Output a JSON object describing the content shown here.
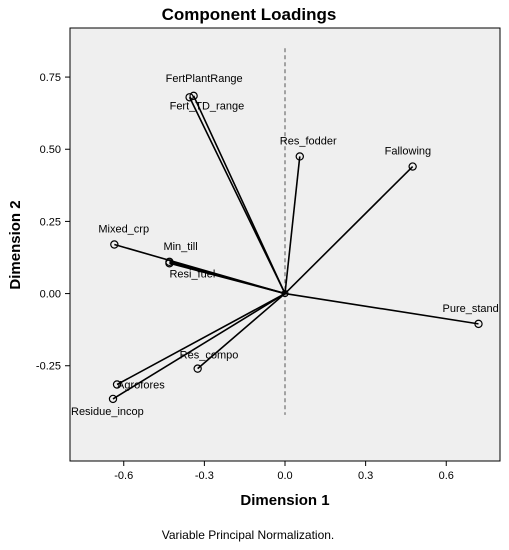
{
  "chart_data": {
    "type": "scatter",
    "title": "Component Loadings",
    "xlabel": "Dimension 1",
    "ylabel": "Dimension 2",
    "footnote": "Variable Principal Normalization.",
    "xlim": [
      -0.8,
      0.8
    ],
    "ylim": [
      -0.58,
      0.92
    ],
    "xticks": [
      "-0.6",
      "-0.3",
      "0.0",
      "0.3",
      "0.6"
    ],
    "xtick_values": [
      -0.6,
      -0.3,
      0.0,
      0.3,
      0.6
    ],
    "yticks": [
      "0.75",
      "0.50",
      "0.25",
      "0.00",
      "-0.25"
    ],
    "ytick_values": [
      0.75,
      0.5,
      0.25,
      0.0,
      -0.25
    ],
    "grid": false,
    "reference_line": {
      "x": 0.0,
      "style": "dashed"
    },
    "vectors_from_origin": true,
    "points": [
      {
        "label": "FertPlantRange",
        "x": -0.34,
        "y": 0.685
      },
      {
        "label": "Fert_TD_range",
        "x": -0.355,
        "y": 0.68
      },
      {
        "label": "Res_fodder",
        "x": 0.055,
        "y": 0.475
      },
      {
        "label": "Fallowing",
        "x": 0.475,
        "y": 0.44
      },
      {
        "label": "Mixed_crp",
        "x": -0.635,
        "y": 0.17
      },
      {
        "label": "Min_till",
        "x": -0.43,
        "y": 0.11
      },
      {
        "label": "Resi_fuel",
        "x": -0.43,
        "y": 0.105
      },
      {
        "label": "Pure_stand",
        "x": 0.72,
        "y": -0.105
      },
      {
        "label": "Res_compo",
        "x": -0.325,
        "y": -0.26
      },
      {
        "label": "Agrofores",
        "x": -0.625,
        "y": -0.315
      },
      {
        "label": "Residue_incop",
        "x": -0.64,
        "y": -0.365
      }
    ],
    "colors": {
      "plot_background": "#efefef",
      "line": "#000000",
      "marker": "#000000"
    }
  }
}
